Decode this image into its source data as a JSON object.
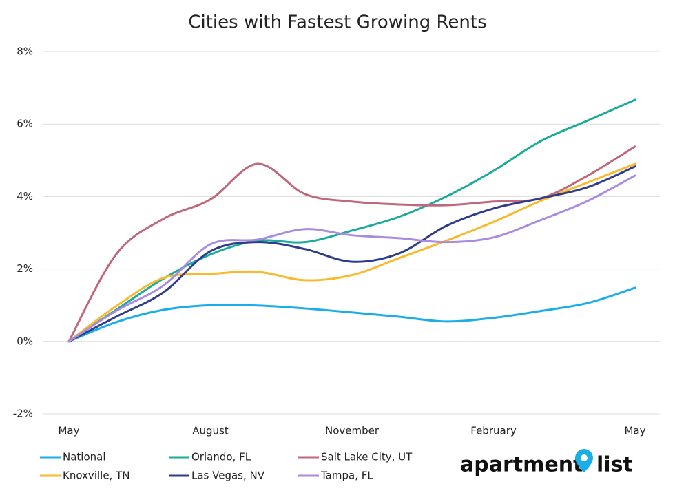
{
  "chart_data": {
    "type": "line",
    "title": "Cities with Fastest Growing Rents",
    "categories": [
      "May",
      null,
      null,
      "August",
      null,
      null,
      "November",
      null,
      null,
      "February",
      null,
      null,
      "May"
    ],
    "ylim": [
      -2,
      8
    ],
    "yticks": [
      {
        "value": -2,
        "label": "-2%"
      },
      {
        "value": 0,
        "label": "0%"
      },
      {
        "value": 2,
        "label": "2%"
      },
      {
        "value": 4,
        "label": "4%"
      },
      {
        "value": 6,
        "label": "6%"
      },
      {
        "value": 8,
        "label": "8%"
      }
    ],
    "grid": true,
    "legend": "bottom",
    "series": [
      {
        "name": "National",
        "color": "#1aaee8",
        "values": [
          0,
          0.53,
          0.87,
          1.0,
          0.99,
          0.91,
          0.8,
          0.68,
          0.55,
          0.65,
          0.84,
          1.06,
          1.48
        ]
      },
      {
        "name": "Orlando, FL",
        "color": "#1aab9b",
        "values": [
          0,
          0.87,
          1.73,
          2.4,
          2.78,
          2.74,
          3.06,
          3.44,
          4.0,
          4.71,
          5.53,
          6.1,
          6.67
        ]
      },
      {
        "name": "Salt Lake City, UT",
        "color": "#c0677a",
        "values": [
          0,
          2.4,
          3.38,
          3.92,
          4.9,
          4.07,
          3.86,
          3.78,
          3.76,
          3.86,
          3.95,
          4.58,
          5.38
        ]
      },
      {
        "name": "Knoxville, TN",
        "color": "#fbb829",
        "values": [
          0,
          0.97,
          1.75,
          1.86,
          1.92,
          1.69,
          1.83,
          2.3,
          2.78,
          3.3,
          3.88,
          4.39,
          4.9
        ]
      },
      {
        "name": "Las Vegas, NV",
        "color": "#2e3c8c",
        "values": [
          0,
          0.68,
          1.35,
          2.49,
          2.74,
          2.55,
          2.2,
          2.43,
          3.19,
          3.67,
          3.95,
          4.26,
          4.83
        ]
      },
      {
        "name": "Tampa, FL",
        "color": "#a98be0",
        "values": [
          0,
          0.84,
          1.54,
          2.68,
          2.81,
          3.1,
          2.93,
          2.85,
          2.74,
          2.87,
          3.35,
          3.88,
          4.58
        ]
      }
    ],
    "logo": [
      "apartment",
      "list"
    ]
  }
}
